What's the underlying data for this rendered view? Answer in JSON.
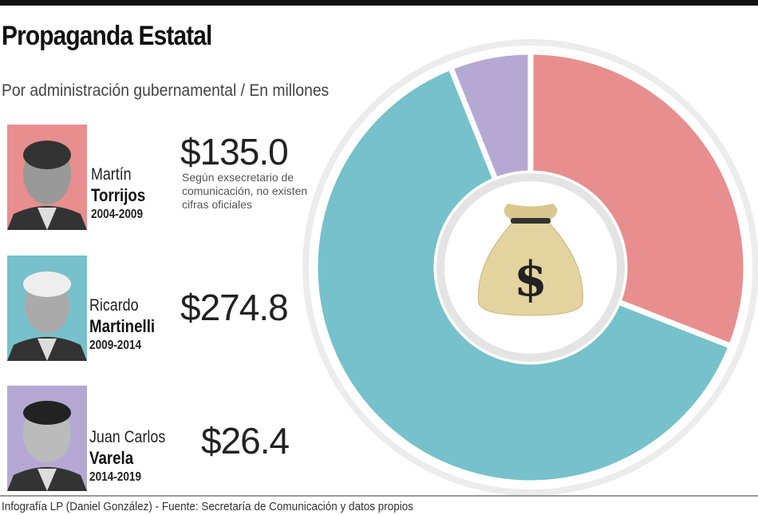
{
  "header": {
    "title": "Propaganda Estatal",
    "subtitle": "Por administración gubernamental / En millones"
  },
  "administrations": [
    {
      "first_name": "Martín",
      "last_name": "Torrijos",
      "years": "2004-2009",
      "amount": "$135.0",
      "note": "Según exsecretario de comunicación, no existen cifras oficiales",
      "color": "#e88e8e"
    },
    {
      "first_name": "Ricardo",
      "last_name": "Martinelli",
      "years": "2009-2014",
      "amount": "$274.8",
      "color": "#76c1cb"
    },
    {
      "first_name": "Juan Carlos",
      "last_name": "Varela",
      "years": "2014-2019",
      "amount": "$26.4",
      "color": "#b5a9d3"
    }
  ],
  "chart_data": {
    "type": "pie",
    "variant": "donut",
    "categories": [
      "Martín Torrijos 2004-2009",
      "Ricardo Martinelli 2009-2014",
      "Juan Carlos Varela 2014-2019"
    ],
    "values": [
      135.0,
      274.8,
      26.4
    ],
    "unit": "millones",
    "colors": [
      "#e88e8e",
      "#76c1cb",
      "#b5a9d3"
    ],
    "center_icon": "money-bag-icon",
    "legend": "left"
  },
  "footer": {
    "credit": "Infografía LP (Daniel González) - Fuente: Secretaría de Comunicación y datos propios"
  }
}
